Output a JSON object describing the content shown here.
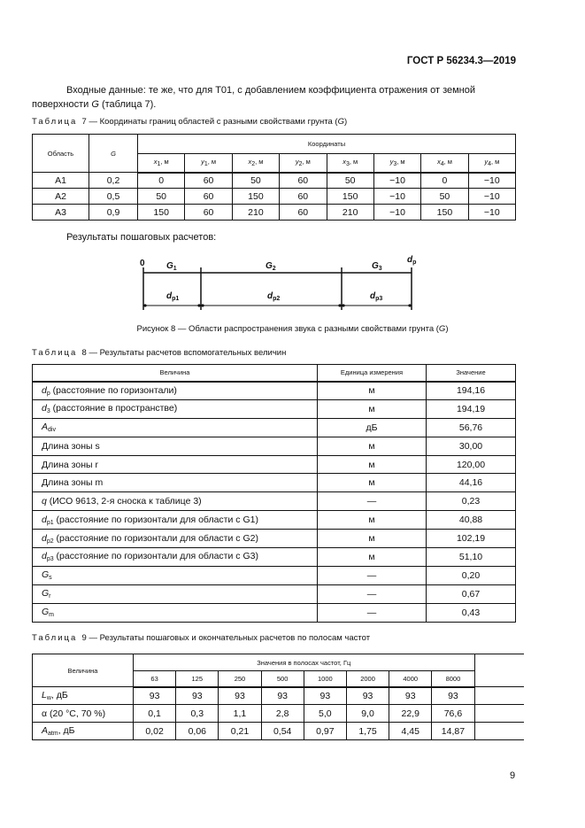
{
  "header": {
    "doc_id": "ГОСТ Р 56234.3—2019"
  },
  "intro": {
    "text_before": "Входные данные: те же, что для Т01, с добавлением коэффициента отражения от земной поверхности ",
    "g": "G",
    "text_after": " (таблица 7)."
  },
  "table7": {
    "label": "Таблица",
    "number": "7",
    "title": "— Координаты границ областей с разными свойствами грунта (",
    "title_g": "G",
    "title_end": ")",
    "col_area": "Область",
    "col_g": "G",
    "col_coords": "Координаты",
    "coord_cols": [
      {
        "v": "x",
        "s": "1"
      },
      {
        "v": "y",
        "s": "1"
      },
      {
        "v": "x",
        "s": "2"
      },
      {
        "v": "y",
        "s": "2"
      },
      {
        "v": "x",
        "s": "3"
      },
      {
        "v": "y",
        "s": "3"
      },
      {
        "v": "x",
        "s": "4"
      },
      {
        "v": "y",
        "s": "4"
      }
    ],
    "unit": ", м",
    "rows": [
      [
        "А1",
        "0,2",
        "0",
        "60",
        "50",
        "60",
        "50",
        "−10",
        "0",
        "−10"
      ],
      [
        "А2",
        "0,5",
        "50",
        "60",
        "150",
        "60",
        "150",
        "−10",
        "50",
        "−10"
      ],
      [
        "А3",
        "0,9",
        "150",
        "60",
        "210",
        "60",
        "210",
        "−10",
        "150",
        "−10"
      ]
    ]
  },
  "results_heading": "Результаты пошаговых расчетов:",
  "figure": {
    "labels": {
      "origin": "0",
      "g1": "G",
      "g1s": "1",
      "g2": "G",
      "g2s": "2",
      "g3": "G",
      "g3s": "3",
      "dp": "d",
      "dps": "p",
      "dp1": "d",
      "dp1s": "p1",
      "dp2": "d",
      "dp2s": "p2",
      "dp3": "d",
      "dp3s": "p3"
    },
    "caption": "Рисунок 8 — Области распространения звука с разными свойствами грунта (",
    "caption_g": "G",
    "caption_end": ")"
  },
  "table8": {
    "label": "Таблица",
    "number": "8",
    "title": "— Результаты расчетов вспомогательных величин",
    "headers": [
      "Величина",
      "Единица измерения",
      "Значение"
    ],
    "rows": [
      {
        "sym": "d",
        "sub": "p",
        "text": " (расстояние по горизонтали)",
        "unit": "м",
        "value": "194,16"
      },
      {
        "sym": "d",
        "sub": "3",
        "text": " (расстояние в пространстве)",
        "unit": "м",
        "value": "194,19"
      },
      {
        "sym": "A",
        "sub": "div",
        "text": "",
        "unit": "дБ",
        "value": "56,76"
      },
      {
        "sym": "",
        "sub": "",
        "text": "Длина зоны s",
        "unit": "м",
        "value": "30,00"
      },
      {
        "sym": "",
        "sub": "",
        "text": "Длина зоны r",
        "unit": "м",
        "value": "120,00"
      },
      {
        "sym": "",
        "sub": "",
        "text": "Длина зоны m",
        "unit": "м",
        "value": "44,16"
      },
      {
        "sym": "q",
        "sub": "",
        "text": " (ИСО 9613, 2-я сноска к таблице 3)",
        "unit": "—",
        "value": "0,23"
      },
      {
        "sym": "d",
        "sub": "p1",
        "text": " (расстояние по горизонтали для области с G1)",
        "unit": "м",
        "value": "40,88"
      },
      {
        "sym": "d",
        "sub": "p2",
        "text": " (расстояние по горизонтали для области с G2)",
        "unit": "м",
        "value": "102,19"
      },
      {
        "sym": "d",
        "sub": "p3",
        "text": " (расстояние по горизонтали для области с G3)",
        "unit": "м",
        "value": "51,10"
      },
      {
        "sym": "G",
        "sub": "s",
        "text": "",
        "unit": "—",
        "value": "0,20"
      },
      {
        "sym": "G",
        "sub": "r",
        "text": "",
        "unit": "—",
        "value": "0,67"
      },
      {
        "sym": "G",
        "sub": "m",
        "text": "",
        "unit": "—",
        "value": "0,43"
      }
    ]
  },
  "table9": {
    "label": "Таблица",
    "number": "9",
    "title": "— Результаты пошаговых и окончательных расчетов по полосам частот",
    "col_quantity": "Величина",
    "col_bands": "Значения в полосах частот, Гц",
    "bands": [
      "63",
      "125",
      "250",
      "500",
      "1000",
      "2000",
      "4000",
      "8000"
    ],
    "rows": [
      {
        "sym": "L",
        "sub": "w",
        "text": ", дБ",
        "values": [
          "93",
          "93",
          "93",
          "93",
          "93",
          "93",
          "93",
          "93"
        ]
      },
      {
        "sym": "",
        "sub": "",
        "text": "α (20 °C, 70 %)",
        "values": [
          "0,1",
          "0,3",
          "1,1",
          "2,8",
          "5,0",
          "9,0",
          "22,9",
          "76,6"
        ]
      },
      {
        "sym": "A",
        "sub": "atm",
        "text": ", дБ",
        "values": [
          "0,02",
          "0,06",
          "0,21",
          "0,54",
          "0,97",
          "1,75",
          "4,45",
          "14,87"
        ]
      }
    ]
  },
  "page_number": "9"
}
